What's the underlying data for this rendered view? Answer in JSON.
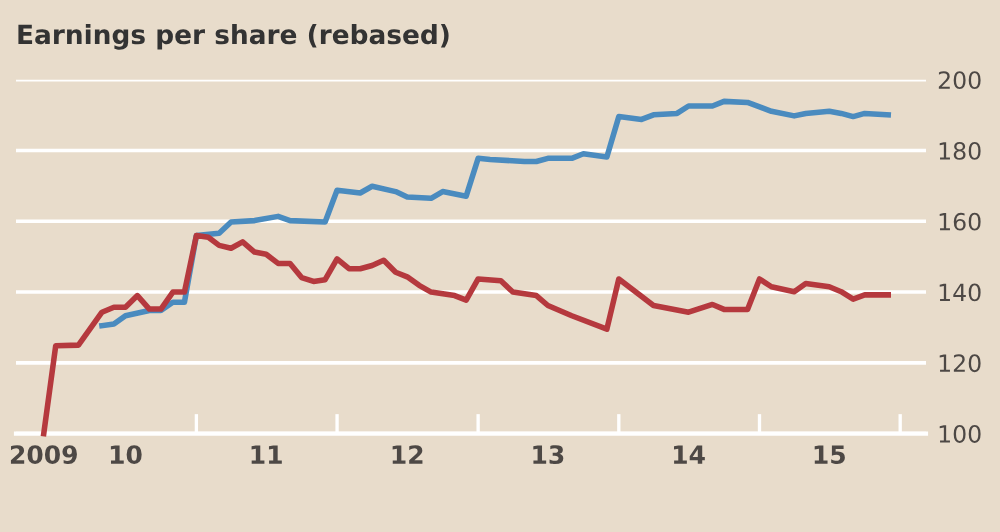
{
  "chart_data": {
    "type": "line",
    "title": "Earnings per share (rebased)",
    "series": [
      {
        "color": "#4a8bbf",
        "x": [
          "2010-05",
          "2010-06",
          "2010-07",
          "2010-09",
          "2010-10",
          "2010-11",
          "2010-12",
          "2011-01",
          "2011-03",
          "2011-04",
          "2011-06",
          "2011-08",
          "2011-09",
          "2011-12",
          "2012-01",
          "2012-03",
          "2012-04",
          "2012-06",
          "2012-07",
          "2012-09",
          "2012-10",
          "2012-12",
          "2013-01",
          "2013-02",
          "2013-05",
          "2013-06",
          "2013-07",
          "2013-09",
          "2013-10",
          "2013-12",
          "2014-01",
          "2014-03",
          "2014-04",
          "2014-06",
          "2014-07",
          "2014-09",
          "2014-10",
          "2014-12",
          "2015-02",
          "2015-04",
          "2015-05",
          "2015-07",
          "2015-08",
          "2015-09",
          "2015-10",
          "2015-12"
        ],
        "values": [
          130.5,
          131,
          133.3,
          134.8,
          134.8,
          137.1,
          137.1,
          156,
          156.6,
          159.8,
          160.2,
          161.4,
          160.2,
          159.8,
          168.8,
          168,
          169.9,
          168.4,
          166.9,
          166.5,
          168.4,
          167.1,
          177.8,
          177.5,
          176.9,
          176.9,
          177.8,
          177.8,
          179.1,
          178.2,
          189.6,
          188.8,
          190.1,
          190.5,
          192.6,
          192.6,
          193.9,
          193.6,
          191.1,
          189.8,
          190.5,
          191.1,
          190.5,
          189.6,
          190.5,
          190.1
        ]
      },
      {
        "color": "#b5393e",
        "x": [
          "2009-12",
          "2010-01",
          "2010-03",
          "2010-05",
          "2010-06",
          "2010-07",
          "2010-08",
          "2010-09",
          "2010-10",
          "2010-11",
          "2010-12",
          "2011-01",
          "2011-02",
          "2011-03",
          "2011-04",
          "2011-05",
          "2011-06",
          "2011-07",
          "2011-08",
          "2011-09",
          "2011-10",
          "2011-11",
          "2011-12",
          "2012-01",
          "2012-02",
          "2012-03",
          "2012-04",
          "2012-05",
          "2012-06",
          "2012-07",
          "2012-08",
          "2012-09",
          "2012-11",
          "2012-12",
          "2013-01",
          "2013-03",
          "2013-04",
          "2013-06",
          "2013-07",
          "2013-09",
          "2013-12",
          "2014-01",
          "2014-04",
          "2014-07",
          "2014-09",
          "2014-10",
          "2014-12",
          "2015-01",
          "2015-02",
          "2015-04",
          "2015-05",
          "2015-07",
          "2015-08",
          "2015-09",
          "2015-10",
          "2015-12"
        ],
        "values": [
          100,
          124.8,
          125,
          134.3,
          135.7,
          135.7,
          139,
          135.2,
          135.2,
          140,
          140,
          156,
          155.5,
          153.2,
          152.4,
          154.2,
          151.3,
          150.7,
          148.1,
          148.1,
          144.1,
          143,
          143.5,
          149.4,
          146.6,
          146.6,
          147.5,
          149,
          145.6,
          144.3,
          141.9,
          140,
          139,
          137.7,
          143.7,
          143.2,
          140,
          139,
          136.2,
          133.3,
          129.5,
          143.7,
          136.2,
          134.3,
          136.5,
          135.1,
          135.1,
          143.7,
          141.5,
          140.1,
          142.4,
          141.5,
          140.1,
          138,
          139.2,
          139.2
        ]
      }
    ],
    "xlim": [
      "2009-09-20",
      "2016-03-08"
    ],
    "ylim": [
      100,
      200
    ],
    "xticks": [
      {
        "value": "2009-12-01",
        "label": "2009"
      },
      {
        "value": "2010-07-01",
        "label": "10"
      },
      {
        "value": "2011-07-01",
        "label": "11"
      },
      {
        "value": "2012-07-01",
        "label": "12"
      },
      {
        "value": "2013-07-01",
        "label": "13"
      },
      {
        "value": "2014-07-01",
        "label": "14"
      },
      {
        "value": "2015-07-01",
        "label": "15"
      },
      {
        "value": "2011-01-01",
        "label": null
      },
      {
        "value": "2012-01-01",
        "label": null
      },
      {
        "value": "2013-01-01",
        "label": null
      },
      {
        "value": "2014-01-01",
        "label": null
      },
      {
        "value": "2015-01-01",
        "label": null
      },
      {
        "value": "2016-01-01",
        "label": null
      }
    ],
    "yticks": [
      100,
      120,
      140,
      160,
      180,
      200
    ],
    "grid": "y"
  }
}
